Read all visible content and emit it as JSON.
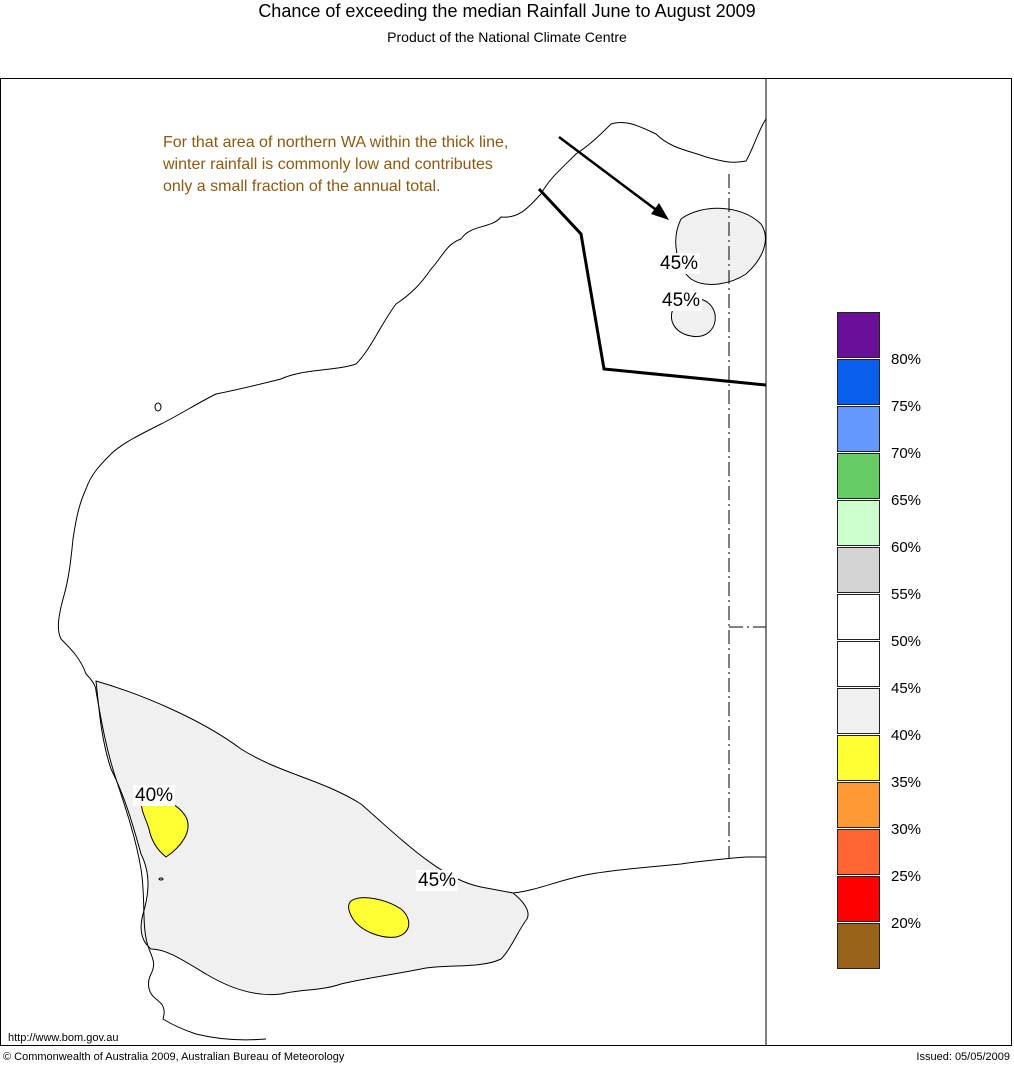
{
  "header": {
    "title": "Chance of exceeding the median Rainfall June to August 2009",
    "subtitle": "Product of the National Climate Centre"
  },
  "annotation": {
    "lines": [
      "For that area of northern WA within the thick line,",
      "winter rainfall is commonly low and contributes",
      "only a small fraction of the annual total."
    ]
  },
  "map_labels": {
    "north_upper": "45%",
    "north_lower": "45%",
    "southwest": "40%",
    "south": "45%"
  },
  "legend": {
    "items": [
      {
        "color": "#6a0f99",
        "label": "80%"
      },
      {
        "color": "#0a5fef",
        "label": "75%"
      },
      {
        "color": "#6699ff",
        "label": "70%"
      },
      {
        "color": "#66cc66",
        "label": "65%"
      },
      {
        "color": "#ccffcc",
        "label": "60%"
      },
      {
        "color": "#d4d4d4",
        "label": "55%"
      },
      {
        "color": "#ffffff",
        "label": "50%"
      },
      {
        "color": "#ffffff",
        "label": "45%"
      },
      {
        "color": "#f0f0f0",
        "label": "40%"
      },
      {
        "color": "#ffff33",
        "label": "35%"
      },
      {
        "color": "#ff9933",
        "label": "30%"
      },
      {
        "color": "#ff6633",
        "label": "25%"
      },
      {
        "color": "#ff0000",
        "label": "20%"
      },
      {
        "color": "#99631a",
        "label": ""
      }
    ]
  },
  "footer": {
    "url": "http://www.bom.gov.au",
    "copyright": "© Commonwealth of Australia 2009, Australian Bureau of Meteorology",
    "issued": "Issued: 05/05/2009"
  }
}
